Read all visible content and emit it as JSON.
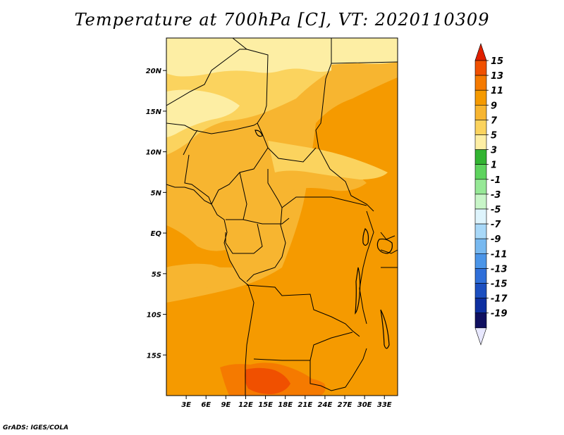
{
  "title": "Temperature at 700hPa [C], VT: 2020110309",
  "credit": "GrADS: IGES/COLA",
  "lat_ticks": [
    "20N",
    "15N",
    "10N",
    "5N",
    "EQ",
    "5S",
    "10S",
    "15S"
  ],
  "lon_ticks": [
    "3E",
    "6E",
    "9E",
    "12E",
    "15E",
    "18E",
    "21E",
    "24E",
    "27E",
    "30E",
    "33E"
  ],
  "map_extent": {
    "lon": [
      0,
      35
    ],
    "lat": [
      -20,
      24
    ]
  },
  "colorbar": {
    "labels": [
      "15",
      "13",
      "11",
      "9",
      "7",
      "5",
      "3",
      "1",
      "-1",
      "-3",
      "-5",
      "-7",
      "-9",
      "-11",
      "-13",
      "-15",
      "-17",
      "-19"
    ],
    "colors": [
      "#e02000",
      "#f05000",
      "#f57a00",
      "#f59a00",
      "#f7b530",
      "#fbd35e",
      "#fdeea4",
      "#32b432",
      "#5ed35e",
      "#96e896",
      "#c8f5c8",
      "#def4fc",
      "#a8d8f8",
      "#78b9f0",
      "#4b95e8",
      "#2f6fd9",
      "#1c4fc0",
      "#0e2fa0",
      "#101060",
      "#e8e8ff"
    ]
  },
  "field_colors": {
    "t5": "#fdeea4",
    "t7": "#fbd35e",
    "t9": "#f7b530",
    "t11": "#f59a00",
    "t13": "#f57a00",
    "t15": "#f05000"
  }
}
